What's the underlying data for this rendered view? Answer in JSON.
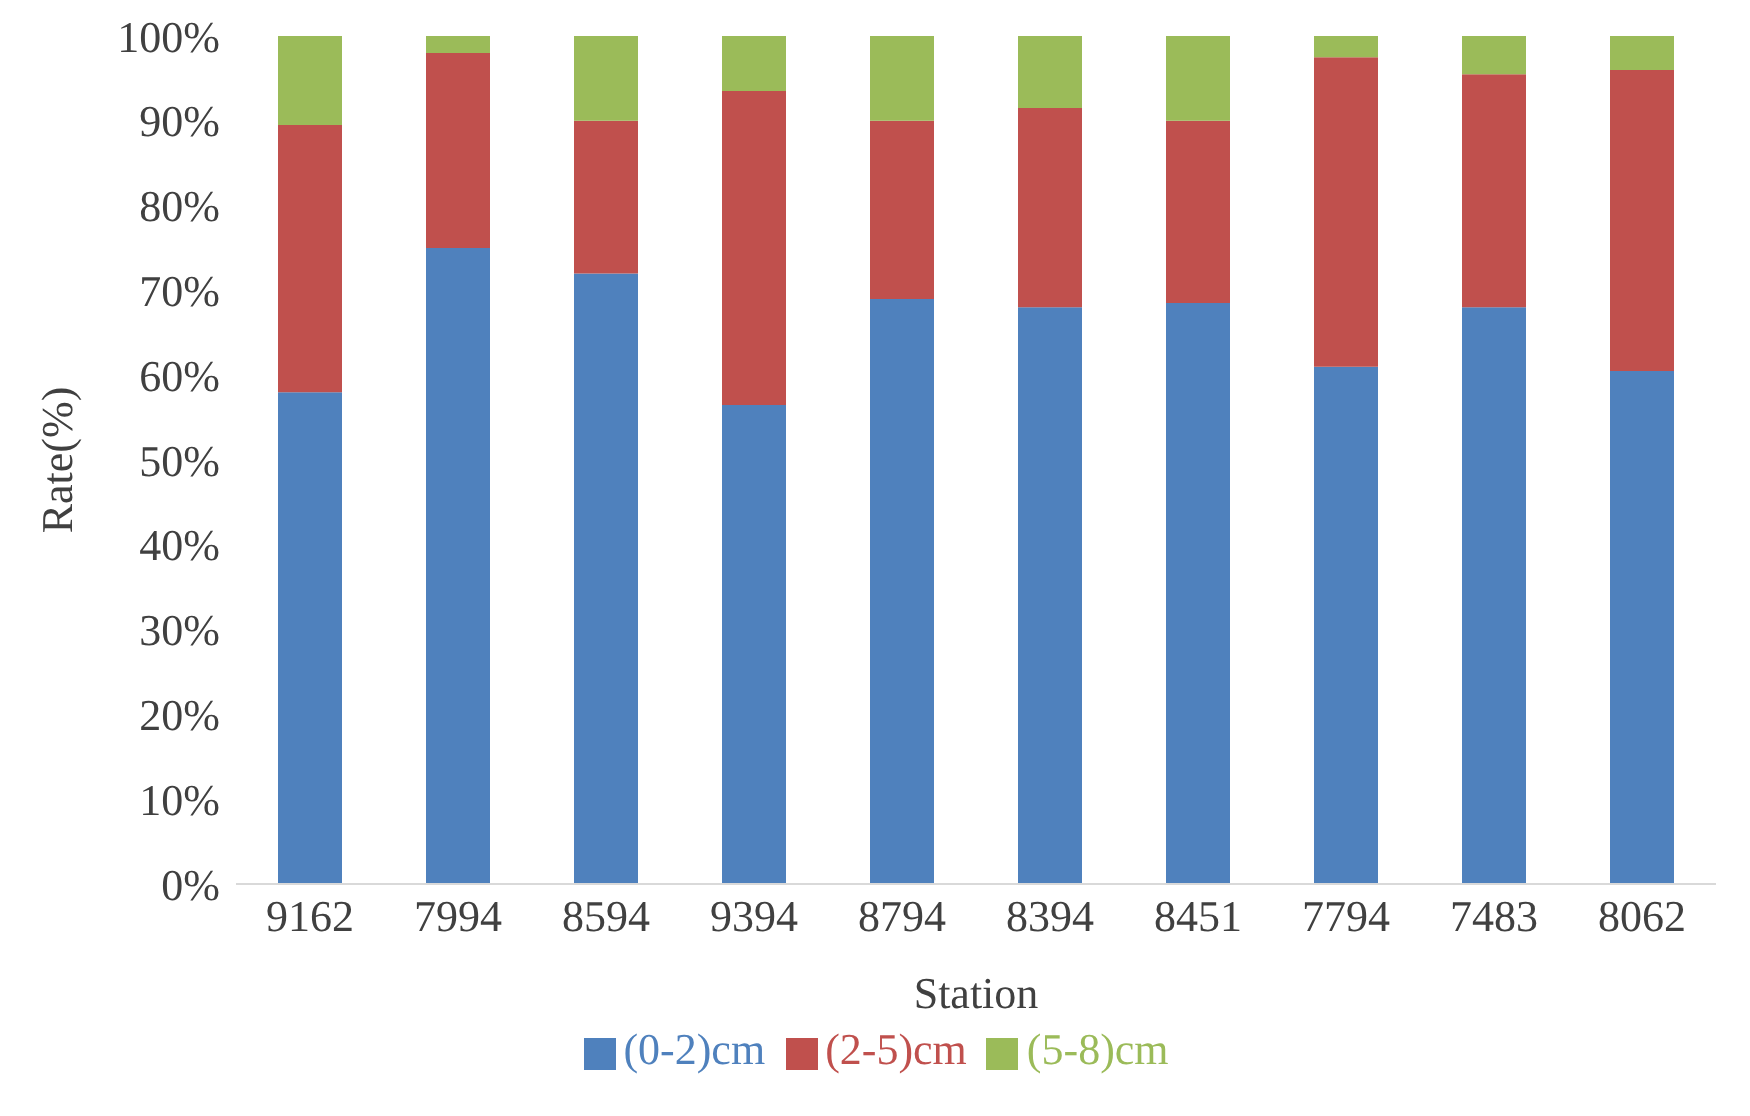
{
  "chart_data": {
    "type": "bar",
    "stacked": true,
    "xlabel": "Station",
    "ylabel": "Rate(%)",
    "categories": [
      "9162",
      "7994",
      "8594",
      "9394",
      "8794",
      "8394",
      "8451",
      "7794",
      "7483",
      "8062"
    ],
    "series": [
      {
        "name": "(0-2)cm",
        "color": "#4f81bd",
        "values": [
          58,
          75,
          72,
          56.5,
          69,
          68,
          68.5,
          61,
          68,
          60.5
        ]
      },
      {
        "name": "(2-5)cm",
        "color": "#c0504d",
        "values": [
          31.5,
          23,
          18,
          37,
          21,
          23.5,
          21.5,
          36.5,
          27.5,
          35.5
        ]
      },
      {
        "name": "(5-8)cm",
        "color": "#9bbb59",
        "values": [
          10.5,
          2,
          10,
          6.5,
          10,
          8.5,
          10,
          2.5,
          4.5,
          4
        ]
      }
    ],
    "ylim": [
      0,
      100
    ],
    "yticks": [
      {
        "value": 0,
        "label": "0%"
      },
      {
        "value": 10,
        "label": "10%"
      },
      {
        "value": 20,
        "label": "20%"
      },
      {
        "value": 30,
        "label": "30%"
      },
      {
        "value": 40,
        "label": "40%"
      },
      {
        "value": 50,
        "label": "50%"
      },
      {
        "value": 60,
        "label": "60%"
      },
      {
        "value": 70,
        "label": "70%"
      },
      {
        "value": 80,
        "label": "80%"
      },
      {
        "value": 90,
        "label": "90%"
      },
      {
        "value": 100,
        "label": "100%"
      }
    ],
    "grid": false,
    "legend": "bottom"
  }
}
